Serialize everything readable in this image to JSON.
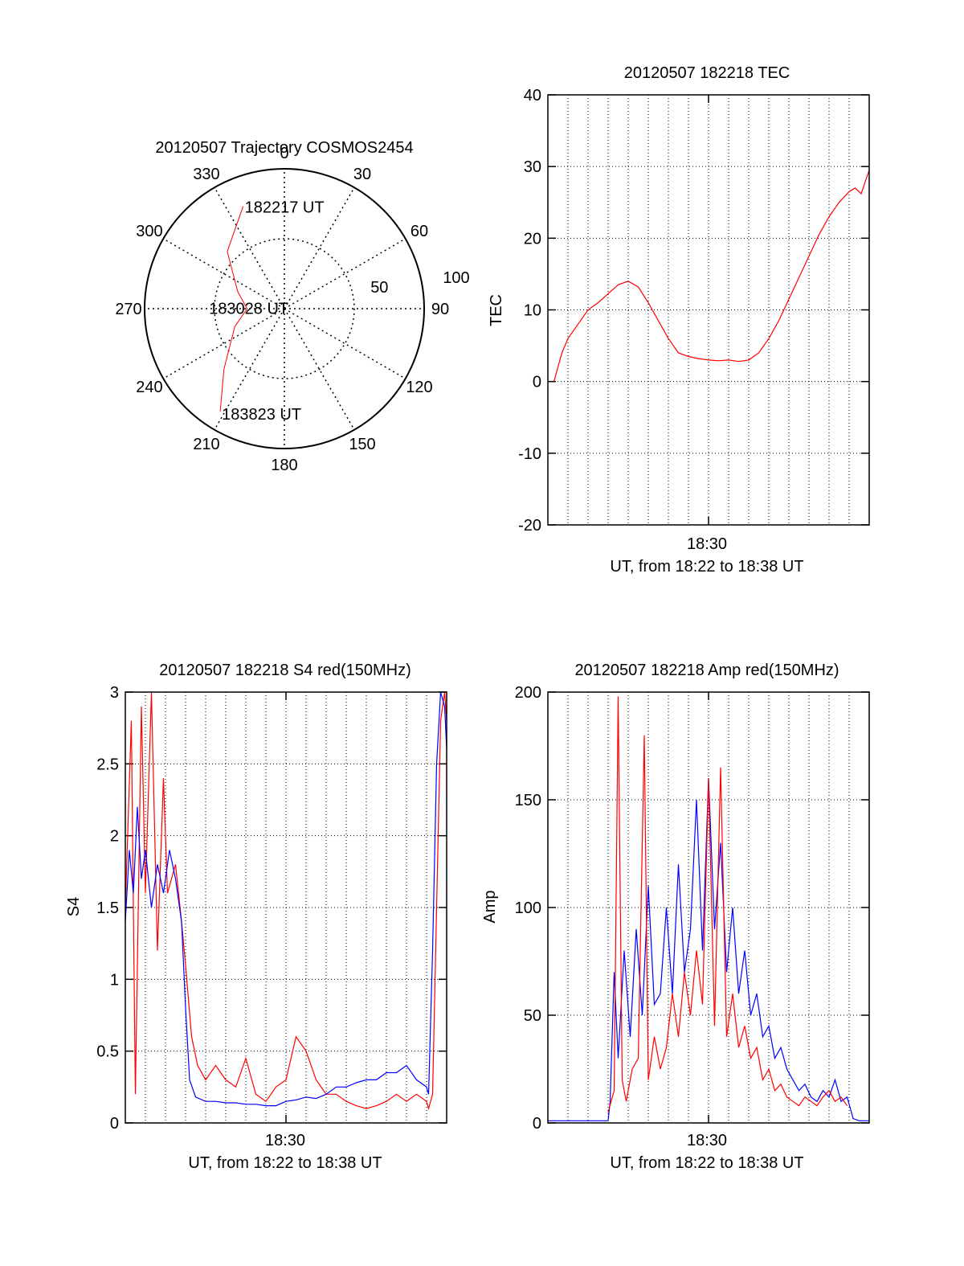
{
  "colors": {
    "red": "#ff0000",
    "blue": "#0000ff",
    "axis": "#000000"
  },
  "chart_data": [
    {
      "type": "polar",
      "title": "20120507 Trajectory COSMOS2454",
      "azimuth_labels": [
        "0",
        "30",
        "60",
        "90",
        "120",
        "150",
        "180",
        "210",
        "240",
        "270",
        "300",
        "330"
      ],
      "radial_labels": [
        "50",
        "100"
      ],
      "track_color": "red",
      "track": [
        {
          "az": 338,
          "el": 19,
          "label": "182217 UT"
        },
        {
          "az": 315,
          "el": 38
        },
        {
          "az": 290,
          "el": 58
        },
        {
          "az": 270,
          "el": 66
        },
        {
          "az": 250,
          "el": 56
        },
        {
          "az": 225,
          "el": 35
        },
        {
          "az": 212,
          "el": 12,
          "label": "183823 UT"
        }
      ],
      "mid_label": {
        "az": 280,
        "el": 88,
        "text": "183028 UT"
      }
    },
    {
      "type": "line",
      "title": "20120507 182218 TEC",
      "xlabel": "UT, from 18:22 to 18:38 UT",
      "ylabel": "TEC",
      "xtick_label": "18:30",
      "ylim": [
        -20,
        40
      ],
      "yticks": [
        -20,
        -10,
        0,
        10,
        20,
        30,
        40
      ],
      "xlim": [
        0,
        16
      ],
      "series": [
        {
          "color": "red",
          "x": [
            0.3,
            0.7,
            1.0,
            1.5,
            2.0,
            2.5,
            2.9,
            3.5,
            4.0,
            4.5,
            5.0,
            5.5,
            6.0,
            6.5,
            7.0,
            7.5,
            8.0,
            8.5,
            9.0,
            9.5,
            10.0,
            10.5,
            11.0,
            11.5,
            12.0,
            12.5,
            13.0,
            13.5,
            14.0,
            14.5,
            15.0,
            15.3,
            15.6,
            16.0
          ],
          "y": [
            0,
            4,
            6,
            8,
            10,
            11,
            12,
            13.5,
            14,
            13.2,
            11,
            8.5,
            6,
            4,
            3.5,
            3.2,
            3,
            2.9,
            3,
            2.8,
            3,
            4,
            6,
            8.5,
            11.5,
            14.5,
            17.5,
            20.5,
            23,
            25,
            26.5,
            27,
            26.2,
            29.5
          ]
        }
      ]
    },
    {
      "type": "line",
      "title": "20120507 182218 S4 red(150MHz)",
      "xlabel": "UT, from 18:22 to 18:38 UT",
      "ylabel": "S4",
      "xtick_label": "18:30",
      "ylim": [
        0,
        3
      ],
      "yticks": [
        "0",
        "0.5",
        "1",
        "1.5",
        "2",
        "2.5",
        "3"
      ],
      "xlim": [
        0,
        16
      ],
      "series": [
        {
          "color": "red",
          "x": [
            0.0,
            0.3,
            0.5,
            0.8,
            1.0,
            1.3,
            1.6,
            1.9,
            2.1,
            2.5,
            2.8,
            3.0,
            3.3,
            3.6,
            4.0,
            4.5,
            5.0,
            5.5,
            6.0,
            6.5,
            7.0,
            7.5,
            8.0,
            8.5,
            9.0,
            9.5,
            10.0,
            10.5,
            11.0,
            11.5,
            12.0,
            12.5,
            13.0,
            13.5,
            14.0,
            14.5,
            15.0,
            15.1,
            15.3,
            15.5,
            15.7,
            15.9,
            16.0
          ],
          "y": [
            1.5,
            2.8,
            0.2,
            2.9,
            1.6,
            3.0,
            1.2,
            2.4,
            1.6,
            1.8,
            1.4,
            1.1,
            0.6,
            0.4,
            0.3,
            0.4,
            0.3,
            0.25,
            0.45,
            0.2,
            0.15,
            0.25,
            0.3,
            0.6,
            0.5,
            0.3,
            0.2,
            0.2,
            0.15,
            0.12,
            0.1,
            0.12,
            0.15,
            0.2,
            0.15,
            0.2,
            0.15,
            0.1,
            0.2,
            1.5,
            2.8,
            3.0,
            2.8
          ]
        },
        {
          "color": "blue",
          "x": [
            0.0,
            0.2,
            0.4,
            0.6,
            0.8,
            1.0,
            1.3,
            1.6,
            1.9,
            2.2,
            2.5,
            2.8,
            3.0,
            3.2,
            3.5,
            4.0,
            4.5,
            5.0,
            5.5,
            6.0,
            6.5,
            7.0,
            7.5,
            8.0,
            8.5,
            9.0,
            9.5,
            10.0,
            10.5,
            11.0,
            11.5,
            12.0,
            12.5,
            13.0,
            13.5,
            14.0,
            14.5,
            15.0,
            15.1,
            15.3,
            15.5,
            15.7,
            15.9,
            16.0
          ],
          "y": [
            1.4,
            1.9,
            1.6,
            2.2,
            1.7,
            1.9,
            1.5,
            1.8,
            1.6,
            1.9,
            1.7,
            1.4,
            0.8,
            0.3,
            0.18,
            0.15,
            0.15,
            0.14,
            0.14,
            0.13,
            0.13,
            0.12,
            0.12,
            0.15,
            0.16,
            0.18,
            0.17,
            0.2,
            0.25,
            0.25,
            0.28,
            0.3,
            0.3,
            0.35,
            0.35,
            0.4,
            0.3,
            0.25,
            0.2,
            1.2,
            2.5,
            3.0,
            2.9,
            2.6
          ]
        }
      ]
    },
    {
      "type": "line",
      "title": "20120507 182218 Amp red(150MHz)",
      "xlabel": "UT, from 18:22 to 18:38 UT",
      "ylabel": "Amp",
      "xtick_label": "18:30",
      "ylim": [
        0,
        200
      ],
      "yticks": [
        0,
        50,
        100,
        150,
        200
      ],
      "xlim": [
        0,
        16
      ],
      "series": [
        {
          "color": "blue",
          "x": [
            0.0,
            1.0,
            2.0,
            3.0,
            3.1,
            3.3,
            3.5,
            3.8,
            4.1,
            4.4,
            4.7,
            5.0,
            5.3,
            5.6,
            5.9,
            6.2,
            6.5,
            6.8,
            7.1,
            7.4,
            7.7,
            8.0,
            8.3,
            8.6,
            8.9,
            9.2,
            9.5,
            9.8,
            10.1,
            10.4,
            10.7,
            11.0,
            11.3,
            11.6,
            11.9,
            12.2,
            12.5,
            12.8,
            13.1,
            13.4,
            13.7,
            14.0,
            14.3,
            14.6,
            14.9,
            15.2,
            15.5,
            16.0
          ],
          "y": [
            1,
            1,
            1,
            1,
            10,
            70,
            30,
            80,
            40,
            90,
            50,
            110,
            55,
            60,
            100,
            60,
            120,
            70,
            90,
            150,
            80,
            160,
            90,
            130,
            70,
            100,
            60,
            80,
            50,
            60,
            40,
            45,
            30,
            35,
            25,
            20,
            15,
            18,
            12,
            10,
            15,
            12,
            20,
            10,
            12,
            2,
            1,
            1
          ]
        },
        {
          "color": "red",
          "x": [
            3.0,
            3.3,
            3.5,
            3.7,
            3.9,
            4.2,
            4.5,
            4.8,
            5.0,
            5.3,
            5.6,
            5.9,
            6.2,
            6.5,
            6.8,
            7.1,
            7.4,
            7.7,
            8.0,
            8.3,
            8.6,
            8.9,
            9.2,
            9.5,
            9.8,
            10.1,
            10.4,
            10.7,
            11.0,
            11.3,
            11.6,
            11.9,
            12.2,
            12.5,
            12.8,
            13.1,
            13.4,
            13.7,
            14.0,
            14.3,
            14.6,
            14.9
          ],
          "y": [
            5,
            15,
            198,
            20,
            10,
            25,
            30,
            180,
            20,
            40,
            25,
            35,
            60,
            40,
            70,
            50,
            80,
            55,
            160,
            45,
            165,
            40,
            60,
            35,
            45,
            30,
            35,
            20,
            25,
            15,
            18,
            12,
            10,
            8,
            12,
            10,
            8,
            12,
            15,
            10,
            12,
            8
          ]
        }
      ]
    }
  ]
}
